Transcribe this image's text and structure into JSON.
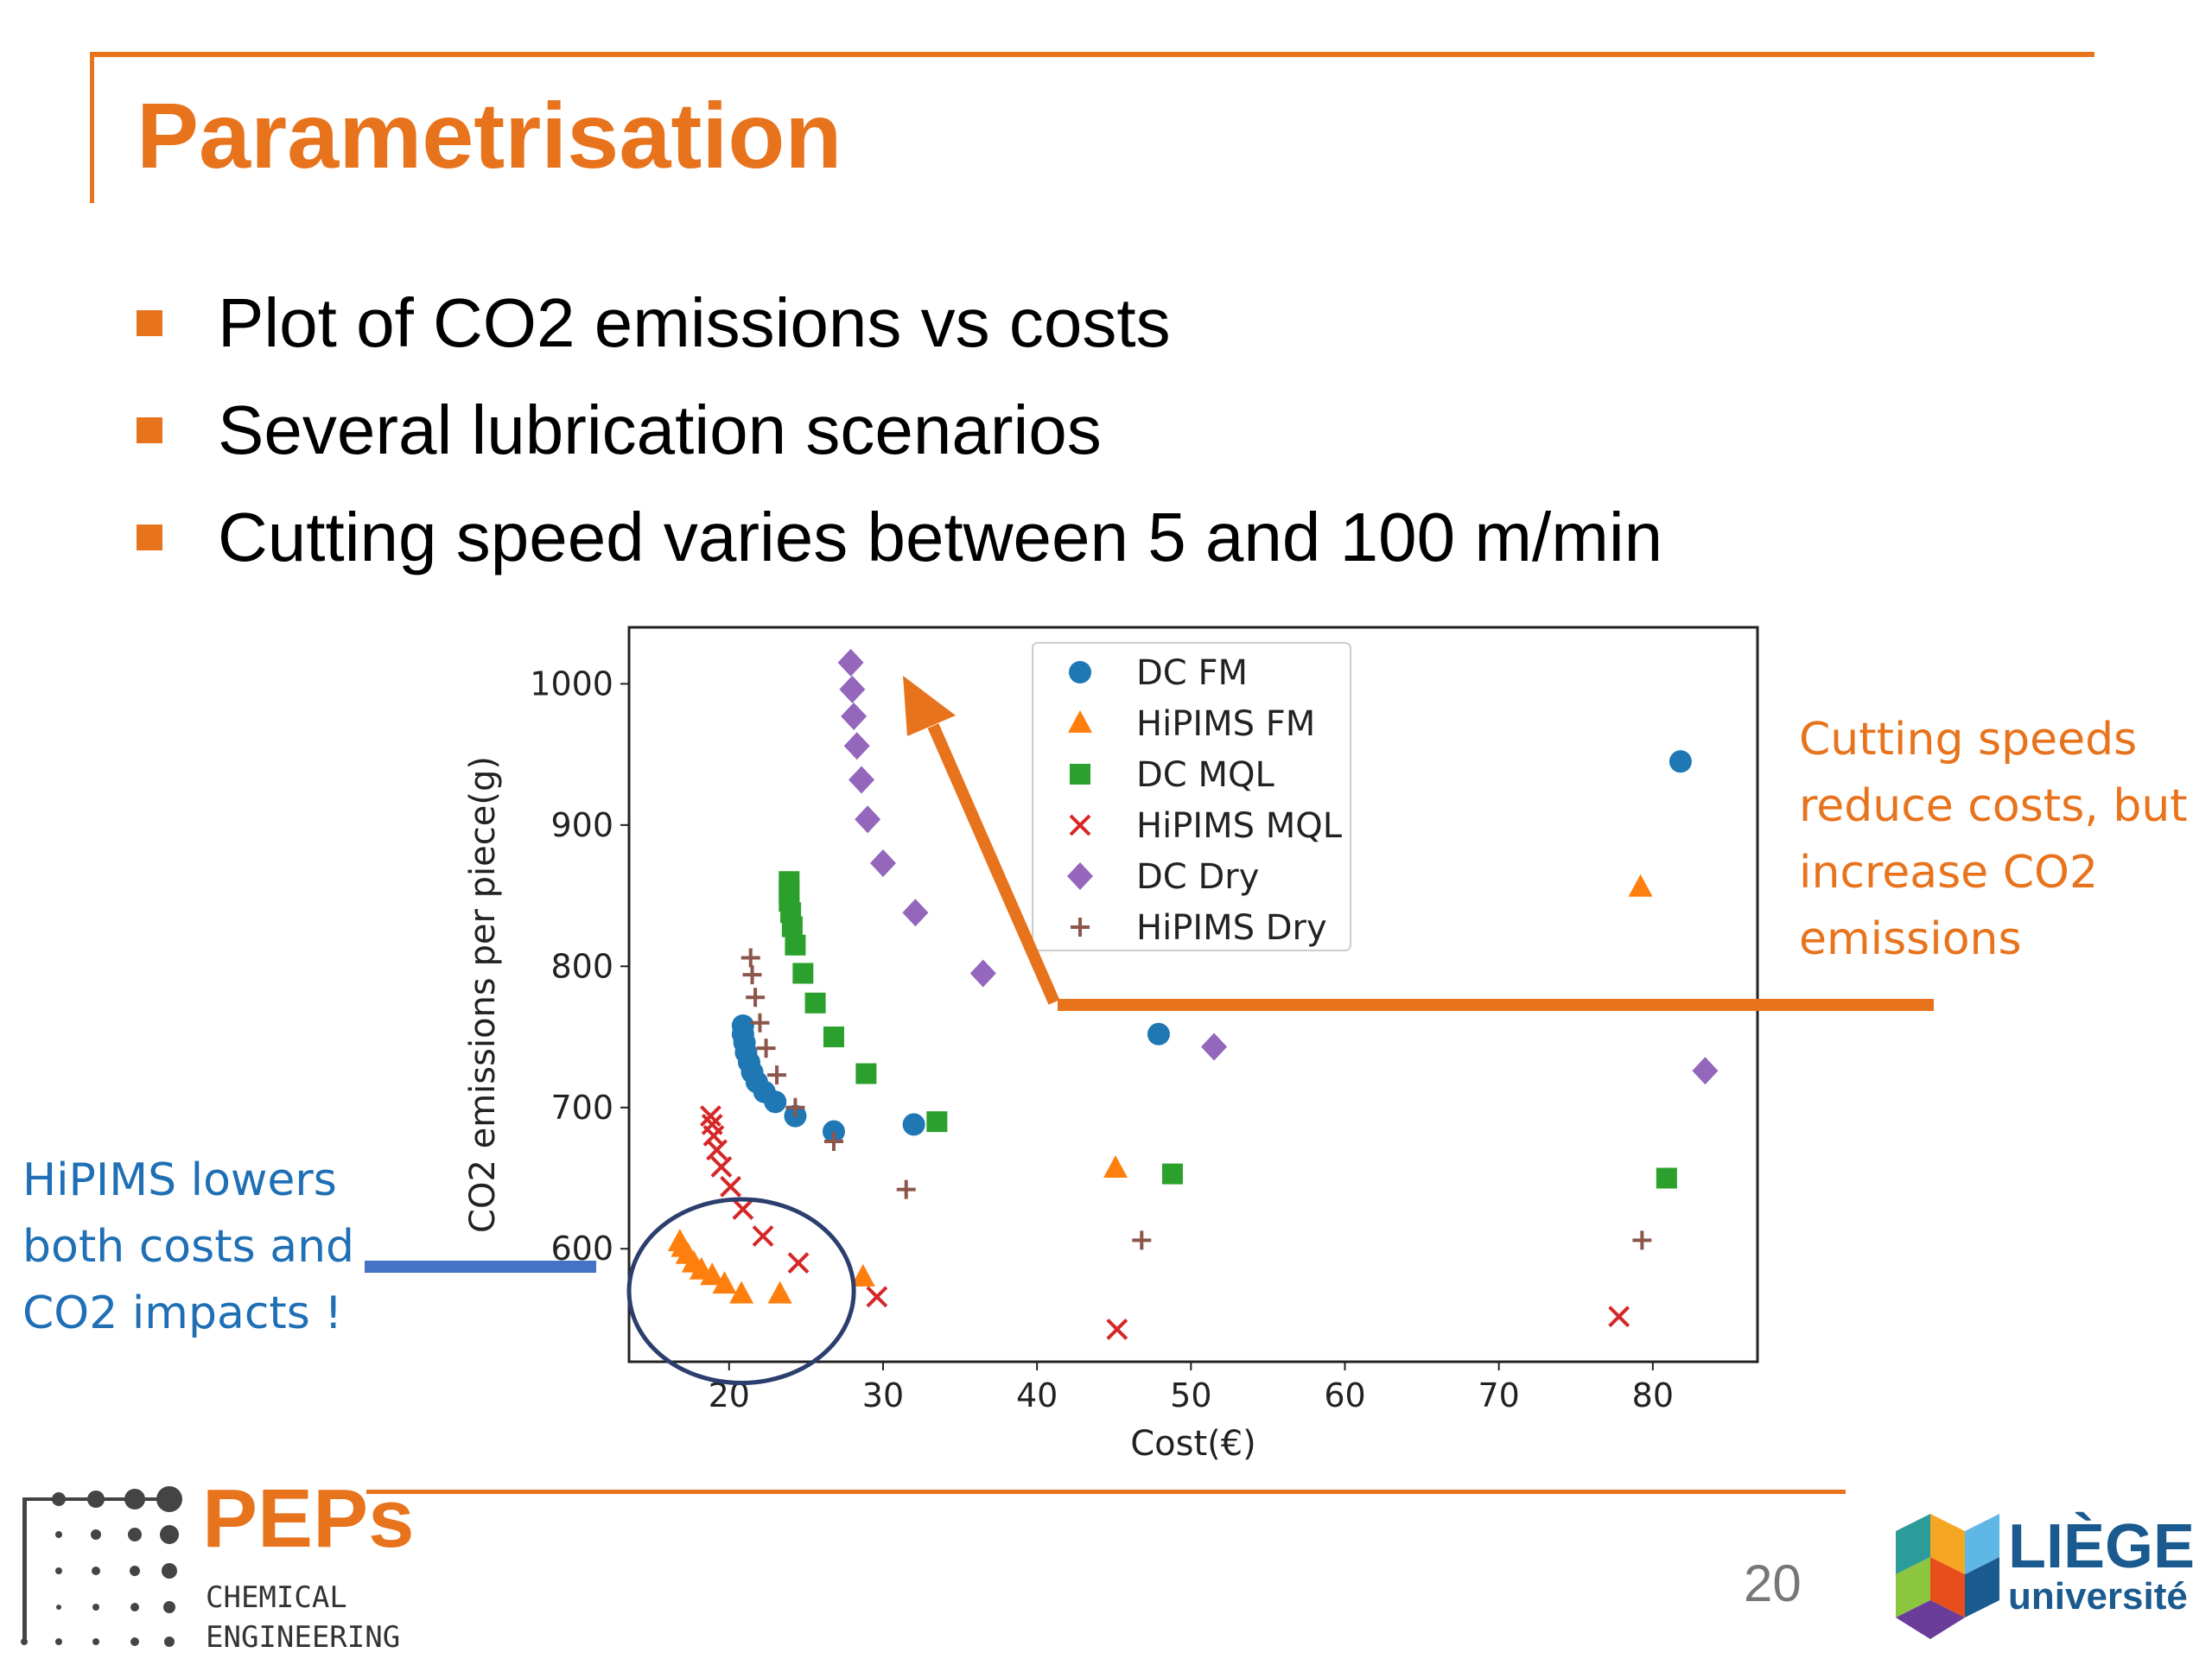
{
  "title": "Parametrisation",
  "bullets": [
    "Plot of CO2 emissions vs costs",
    "Several lubrication scenarios",
    "Cutting speed varies between 5 and 100 m/min"
  ],
  "notes": {
    "left": "HiPIMS lowers both costs and CO2 impacts !",
    "right": "Cutting speeds reduce costs, but increase CO2 emissions"
  },
  "colors": {
    "accent": "#e8731d",
    "note_left": "#1f6fb5",
    "circle": "#2c3e6e",
    "dc_fm": "#1f77b4",
    "hipims_fm": "#ff7f0e",
    "dc_mql": "#2ca02c",
    "hipims_mql": "#d62728",
    "dc_dry": "#9467bd",
    "hipims_dry": "#8c564b"
  },
  "footer": {
    "page_number": "20",
    "peps_name": "PEPs",
    "peps_sub1": "CHEMICAL",
    "peps_sub2": "ENGINEERING",
    "liege_name": "LIÈGE",
    "liege_sub": "université"
  },
  "chart_data": {
    "type": "scatter",
    "xlabel": "Cost(€)",
    "ylabel": "CO2 emissions per piece(g)",
    "xlim": [
      13.5,
      86.8
    ],
    "ylim": [
      520,
      1040
    ],
    "xticks": [
      20,
      30,
      40,
      50,
      60,
      70,
      80
    ],
    "yticks": [
      600,
      700,
      800,
      900,
      1000
    ],
    "grid": false,
    "legend_position": "upper-center",
    "series": [
      {
        "name": "DC FM",
        "marker": "circle",
        "points": [
          [
            81.8,
            945
          ],
          [
            47.9,
            752
          ],
          [
            32.0,
            688
          ],
          [
            26.8,
            683
          ],
          [
            24.3,
            694
          ],
          [
            23.0,
            704
          ],
          [
            22.3,
            711
          ],
          [
            21.8,
            718
          ],
          [
            21.5,
            725
          ],
          [
            21.3,
            732
          ],
          [
            21.1,
            739
          ],
          [
            21.0,
            746
          ],
          [
            20.9,
            752
          ],
          [
            20.9,
            758
          ]
        ]
      },
      {
        "name": "HiPIMS FM",
        "marker": "triangle",
        "points": [
          [
            79.2,
            856
          ],
          [
            45.1,
            657
          ],
          [
            28.7,
            580
          ],
          [
            23.3,
            568
          ],
          [
            20.8,
            568
          ],
          [
            19.7,
            575
          ],
          [
            18.9,
            581
          ],
          [
            18.2,
            585
          ],
          [
            17.7,
            590
          ],
          [
            17.3,
            596
          ],
          [
            17.0,
            601
          ],
          [
            16.8,
            605
          ]
        ]
      },
      {
        "name": "DC MQL",
        "marker": "square",
        "points": [
          [
            80.9,
            650
          ],
          [
            48.8,
            653
          ],
          [
            33.5,
            690
          ],
          [
            28.9,
            724
          ],
          [
            26.8,
            750
          ],
          [
            25.6,
            774
          ],
          [
            24.8,
            795
          ],
          [
            24.3,
            815
          ],
          [
            24.1,
            828
          ],
          [
            24.0,
            838
          ],
          [
            23.9,
            846
          ],
          [
            23.9,
            853
          ],
          [
            23.9,
            860
          ]
        ]
      },
      {
        "name": "HiPIMS MQL",
        "marker": "x",
        "points": [
          [
            77.8,
            552
          ],
          [
            45.2,
            543
          ],
          [
            29.6,
            566
          ],
          [
            24.5,
            590
          ],
          [
            22.2,
            609
          ],
          [
            20.9,
            628
          ],
          [
            20.1,
            644
          ],
          [
            19.5,
            658
          ],
          [
            19.2,
            670
          ],
          [
            19.0,
            680
          ],
          [
            18.9,
            688
          ],
          [
            18.8,
            694
          ]
        ]
      },
      {
        "name": "DC Dry",
        "marker": "diamond",
        "points": [
          [
            83.4,
            726
          ],
          [
            51.5,
            743
          ],
          [
            36.5,
            795
          ],
          [
            32.1,
            838
          ],
          [
            30.0,
            873
          ],
          [
            29.0,
            904
          ],
          [
            28.6,
            932
          ],
          [
            28.3,
            956
          ],
          [
            28.1,
            977
          ],
          [
            28.0,
            996
          ],
          [
            27.9,
            1015
          ]
        ]
      },
      {
        "name": "HiPIMS Dry",
        "marker": "plus",
        "points": [
          [
            79.3,
            606
          ],
          [
            46.8,
            606
          ],
          [
            31.5,
            642
          ],
          [
            26.8,
            676
          ],
          [
            24.3,
            700
          ],
          [
            23.1,
            723
          ],
          [
            22.4,
            742
          ],
          [
            22.0,
            760
          ],
          [
            21.7,
            778
          ],
          [
            21.5,
            794
          ],
          [
            21.4,
            806
          ]
        ]
      }
    ],
    "annotations": [
      {
        "type": "ellipse",
        "center": [
          20.8,
          570
        ],
        "radius_x": 7.3,
        "radius_y": 65
      }
    ]
  }
}
